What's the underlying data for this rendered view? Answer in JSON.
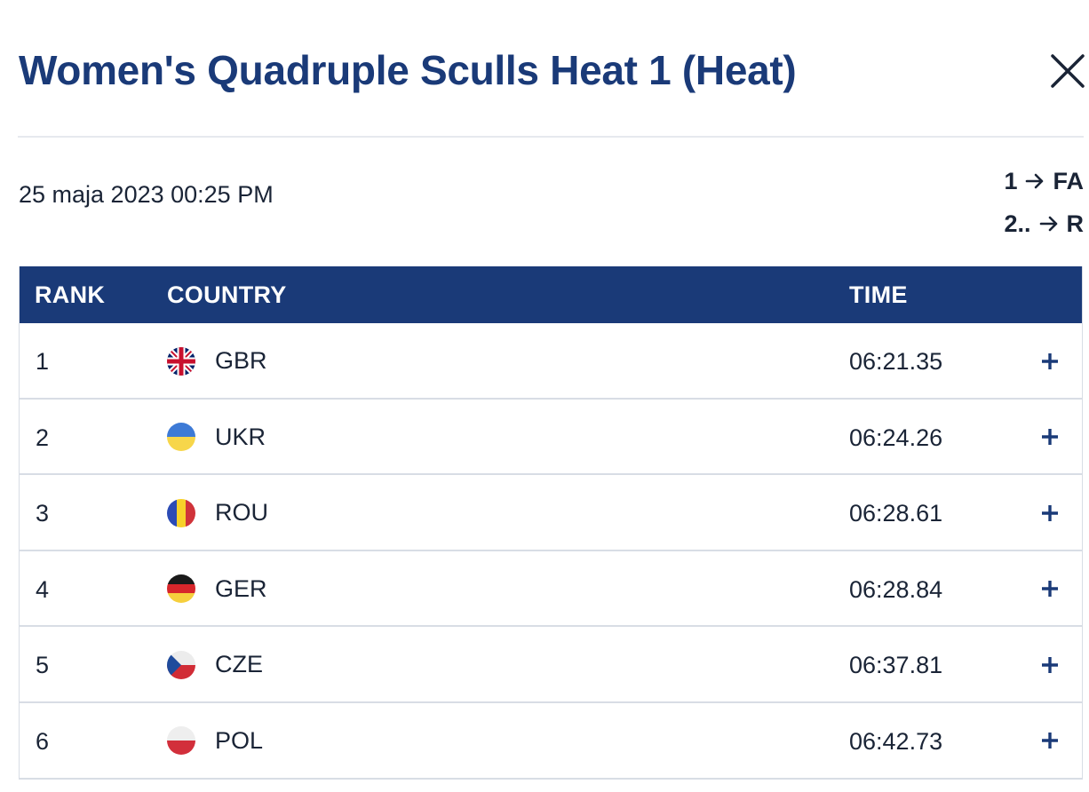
{
  "race": {
    "title": "Women's Quadruple Sculls Heat 1 (Heat)",
    "datetime": "25 maja 2023 00:25 PM",
    "progression": [
      {
        "from": "1",
        "to": "FA"
      },
      {
        "from": "2..",
        "to": "R"
      }
    ]
  },
  "table": {
    "headers": {
      "rank": "RANK",
      "country": "COUNTRY",
      "time": "TIME"
    },
    "rows": [
      {
        "rank": "1",
        "country": "GBR",
        "flag": "gbr-flag-icon",
        "time": "06:21.35"
      },
      {
        "rank": "2",
        "country": "UKR",
        "flag": "ukr-flag-icon",
        "time": "06:24.26"
      },
      {
        "rank": "3",
        "country": "ROU",
        "flag": "rou-flag-icon",
        "time": "06:28.61"
      },
      {
        "rank": "4",
        "country": "GER",
        "flag": "ger-flag-icon",
        "time": "06:28.84"
      },
      {
        "rank": "5",
        "country": "CZE",
        "flag": "cze-flag-icon",
        "time": "06:37.81"
      },
      {
        "rank": "6",
        "country": "POL",
        "flag": "pol-flag-icon",
        "time": "06:42.73"
      }
    ]
  },
  "icons": {
    "close": "close-icon",
    "arrow": "arrow-right-icon",
    "expand": "plus-icon"
  },
  "colors": {
    "primary": "#1a3a78",
    "text": "#1a2436",
    "divider": "#d8dde5"
  }
}
